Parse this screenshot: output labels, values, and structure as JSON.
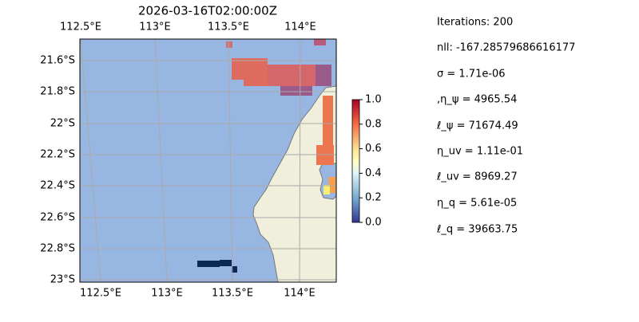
{
  "title": "2026-03-16T02:00:00Z",
  "map": {
    "top_labels": [
      "112.5°E",
      "113°E",
      "113.5°E",
      "114°E"
    ],
    "bottom_labels": [
      "112.5°E",
      "113°E",
      "113.5°E",
      "114°E"
    ],
    "left_labels": [
      "21.6°S",
      "21.8°S",
      "22°S",
      "22.2°S",
      "22.4°S",
      "22.6°S",
      "22.8°S",
      "23°S"
    ]
  },
  "colorbar": {
    "lim": [
      0,
      1
    ],
    "ticks": [
      {
        "value": 0,
        "label": "0.0"
      },
      {
        "value": 0.2,
        "label": "0.2"
      },
      {
        "value": 0.4,
        "label": "0.4"
      },
      {
        "value": 0.6,
        "label": "0.6"
      },
      {
        "value": 0.8,
        "label": "0.8"
      },
      {
        "value": 1,
        "label": "1.0"
      }
    ]
  },
  "info": [
    "Iterations: 200",
    "nll: -167.28579686616177",
    "σ = 1.71e-06",
    ",η_ψ = 4965.54",
    "ℓ_ψ = 71674.49",
    "η_uv = 1.11e-01",
    "ℓ_uv = 8969.27",
    "η_q = 5.61e-05",
    "ℓ_q = 39663.75"
  ]
}
